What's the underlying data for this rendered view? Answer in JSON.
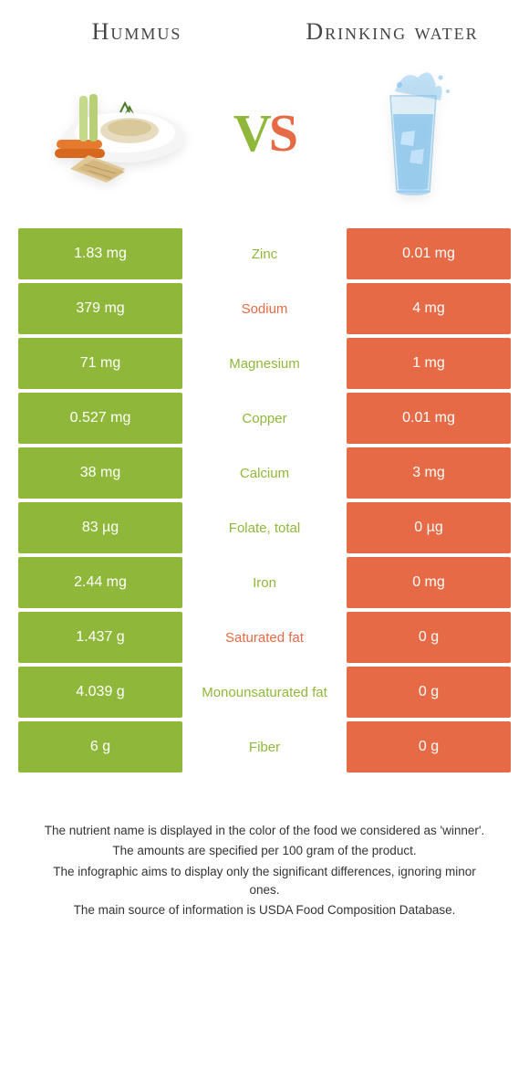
{
  "colors": {
    "left": "#8fb83a",
    "right": "#e66a45",
    "text": "#444444"
  },
  "header": {
    "left_title": "Hummus",
    "right_title": "Drinking water",
    "vs_v": "V",
    "vs_s": "S"
  },
  "rows": [
    {
      "left": "1.83 mg",
      "label": "Zinc",
      "right": "0.01 mg",
      "winner": "left"
    },
    {
      "left": "379 mg",
      "label": "Sodium",
      "right": "4 mg",
      "winner": "right"
    },
    {
      "left": "71 mg",
      "label": "Magnesium",
      "right": "1 mg",
      "winner": "left"
    },
    {
      "left": "0.527 mg",
      "label": "Copper",
      "right": "0.01 mg",
      "winner": "left"
    },
    {
      "left": "38 mg",
      "label": "Calcium",
      "right": "3 mg",
      "winner": "left"
    },
    {
      "left": "83 µg",
      "label": "Folate, total",
      "right": "0 µg",
      "winner": "left"
    },
    {
      "left": "2.44 mg",
      "label": "Iron",
      "right": "0 mg",
      "winner": "left"
    },
    {
      "left": "1.437 g",
      "label": "Saturated fat",
      "right": "0 g",
      "winner": "right"
    },
    {
      "left": "4.039 g",
      "label": "Monounsaturated fat",
      "right": "0 g",
      "winner": "left"
    },
    {
      "left": "6 g",
      "label": "Fiber",
      "right": "0 g",
      "winner": "left"
    }
  ],
  "footnotes": [
    "The nutrient name is displayed in the color of the food we considered as 'winner'.",
    "The amounts are specified per 100 gram of the product.",
    "The infographic aims to display only the significant differences, ignoring minor ones.",
    "The main source of information is USDA Food Composition Database."
  ]
}
